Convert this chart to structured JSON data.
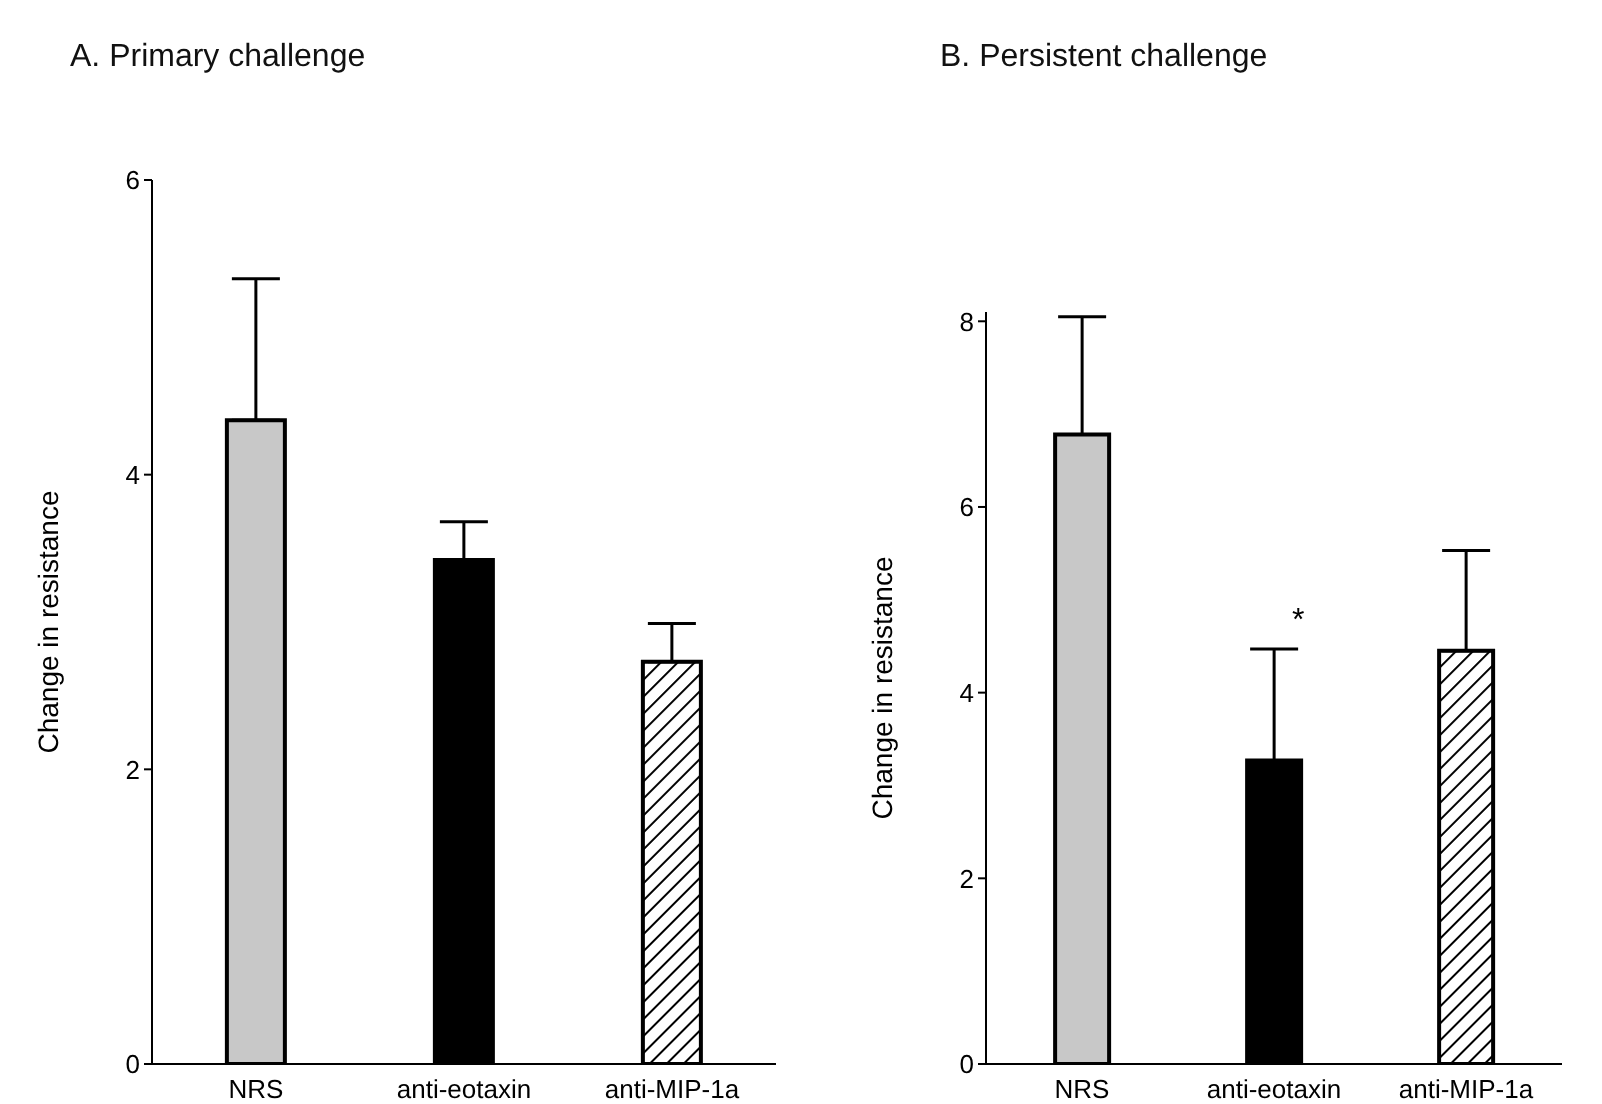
{
  "chart_data": [
    {
      "type": "bar",
      "title": "A. Primary challenge",
      "ylabel": "Change in resistance",
      "categories": [
        "NRS",
        "anti-eotaxin",
        "anti-MIP-1a"
      ],
      "values": [
        4.37,
        3.42,
        2.73
      ],
      "colors": [
        "#c8c8c8",
        "#000000",
        "#000000"
      ],
      "errors": [
        [
          4.37,
          5.33
        ],
        [
          3.42,
          3.68
        ],
        [
          2.73,
          2.99
        ]
      ],
      "ylim": [
        0,
        6
      ],
      "yticks": [
        0,
        2,
        4,
        6
      ],
      "grid": false,
      "legend": false
    },
    {
      "type": "bar",
      "title": "B. Persistent challenge",
      "ylabel": "Change in resistance",
      "categories": [
        "NRS",
        "anti-eotaxin",
        "anti-MIP-1a"
      ],
      "values": [
        6.78,
        3.27,
        4.45
      ],
      "colors": [
        "#c8c8c8",
        "#000000",
        "#000000"
      ],
      "errors": [
        [
          6.78,
          8.05
        ],
        [
          3.27,
          4.47
        ],
        [
          4.45,
          5.53
        ]
      ],
      "annotations": [
        "*"
      ],
      "ylim": [
        0,
        8.1
      ],
      "yticks": [
        0,
        2,
        4,
        6,
        8
      ],
      "grid": false,
      "legend": false
    }
  ]
}
